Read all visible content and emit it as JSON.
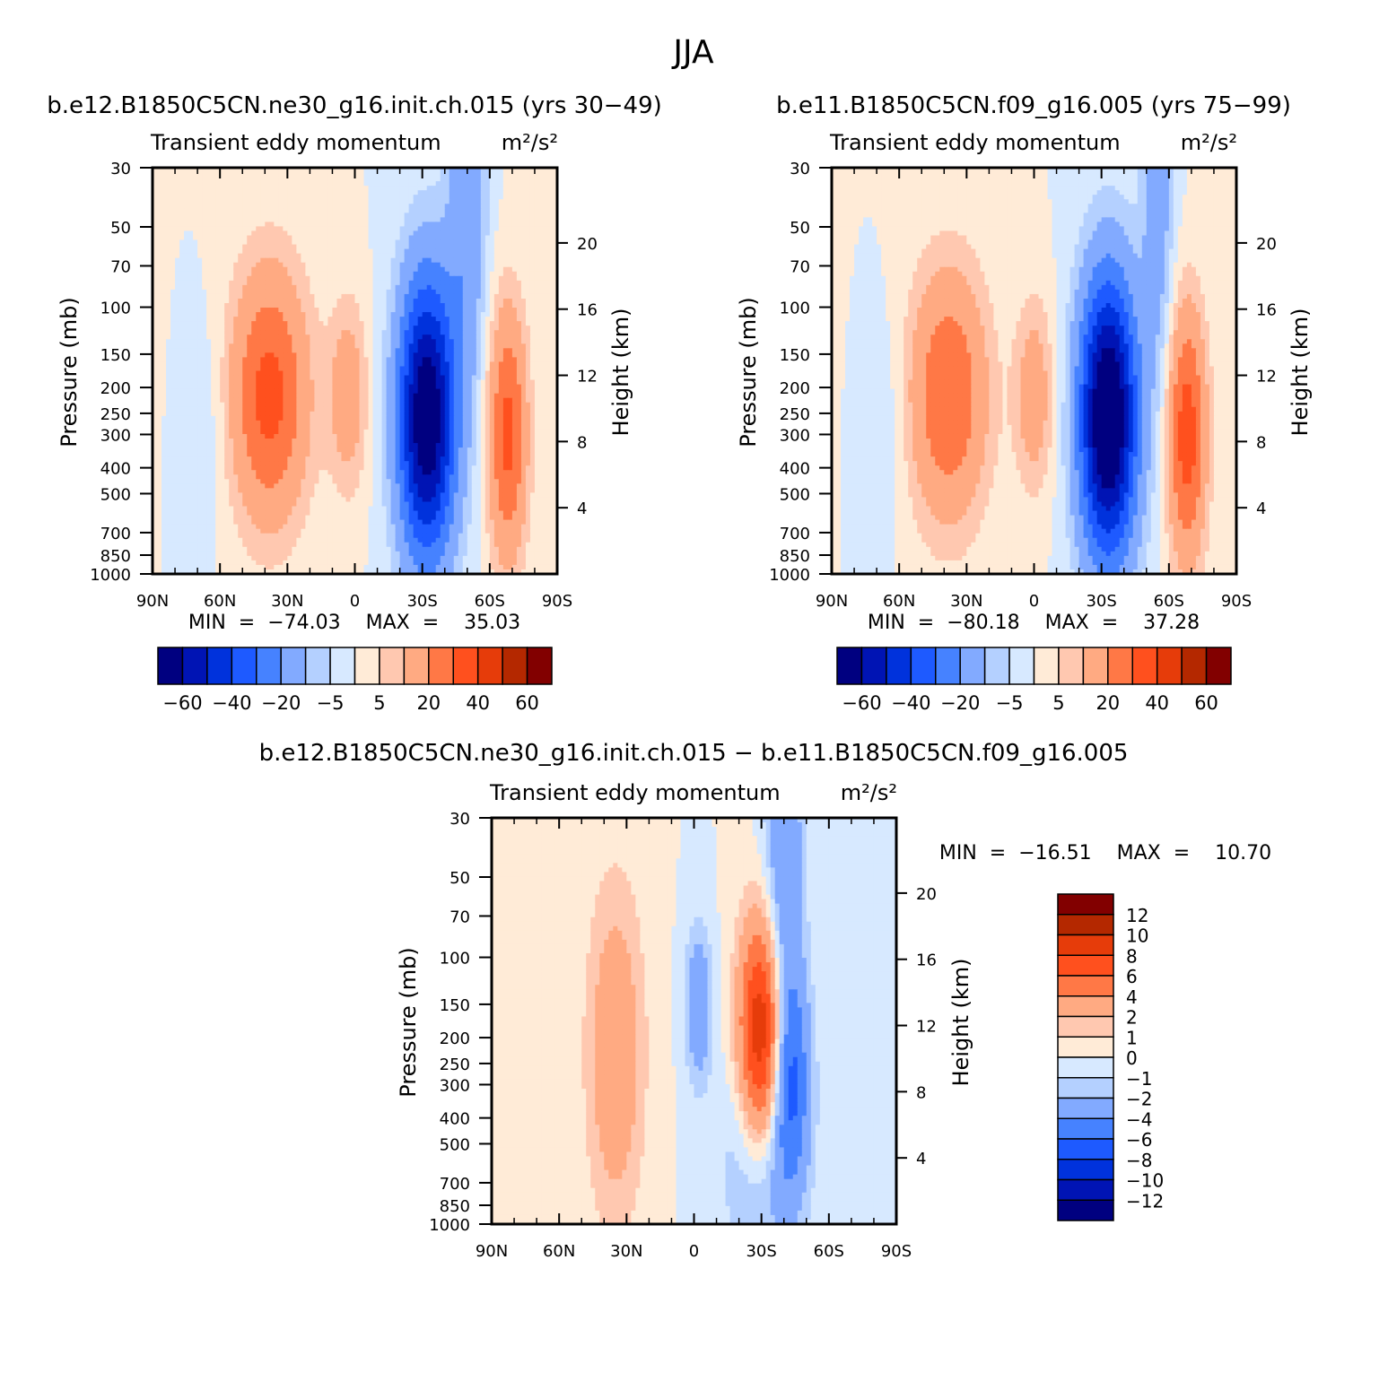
{
  "figure_title": "JJA",
  "colors": {
    "main_scale": [
      "#000080",
      "#0014b4",
      "#0032dc",
      "#1e5aff",
      "#4682ff",
      "#82aaff",
      "#b4d0ff",
      "#d7e9ff",
      "#ffebd7",
      "#ffc8b0",
      "#ffaa82",
      "#ff7846",
      "#ff501e",
      "#e63c0a",
      "#b42800",
      "#820000"
    ],
    "diff_scale": [
      "#000080",
      "#0014b4",
      "#0032dc",
      "#1e5aff",
      "#4682ff",
      "#82aaff",
      "#b4d0ff",
      "#d7e9ff",
      "#ffebd7",
      "#ffc8b0",
      "#ffaa82",
      "#ff7846",
      "#ff501e",
      "#e63c0a",
      "#b42800",
      "#820000"
    ]
  },
  "chart_data": [
    {
      "type": "heatmap",
      "title": "b.e12.B1850C5CN.ne30_g16.init.ch.015 (yrs 30−49)",
      "subtitle": "Transient  eddy  momentum",
      "units": "m²/s²",
      "ylabel": "Pressure  (mb)",
      "ylabel_right": "Height  (km)",
      "xlim": [
        90,
        -90
      ],
      "x_ticklabels": [
        "90N",
        "60N",
        "30N",
        "0",
        "30S",
        "60S",
        "90S"
      ],
      "y_ticklabels": [
        "30",
        "50",
        "70",
        "100",
        "150",
        "200",
        "250",
        "300",
        "400",
        "500",
        "700",
        "850",
        "1000"
      ],
      "y_right_ticklabels": [
        "20",
        "16",
        "12",
        "8",
        "4"
      ],
      "y_scale": "log",
      "ylim": [
        1000,
        30
      ],
      "stats": "MIN  =  −74.03    MAX  =    35.03",
      "min": -74.03,
      "max": 35.03,
      "colorbar_ticklabels": [
        "−60",
        "−40",
        "−20",
        "−5",
        "5",
        "20",
        "40",
        "60"
      ],
      "features": [
        {
          "lat": 38,
          "p": 215,
          "value": 34,
          "lat_width": 12,
          "logp_width": 0.33
        },
        {
          "lat": 3,
          "p": 215,
          "value": 16,
          "lat_width": 6,
          "logp_width": 0.25
        },
        {
          "lat": -32,
          "p": 260,
          "value": -72,
          "lat_width": 9,
          "logp_width": 0.37
        },
        {
          "lat": -68,
          "p": 300,
          "value": 33,
          "lat_width": 6,
          "logp_width": 0.33
        },
        {
          "lat": -50,
          "p": 40,
          "value": -18,
          "lat_width": 6,
          "logp_width": 0.5
        },
        {
          "lat": 65,
          "p": 280,
          "value": -4,
          "lat_width": 6,
          "logp_width": 0.3
        }
      ]
    },
    {
      "type": "heatmap",
      "title": "b.e11.B1850C5CN.f09_g16.005 (yrs 75−99)",
      "subtitle": "Transient  eddy  momentum",
      "units": "m²/s²",
      "ylabel": "Pressure  (mb)",
      "ylabel_right": "Height  (km)",
      "xlim": [
        90,
        -90
      ],
      "x_ticklabels": [
        "90N",
        "60N",
        "30N",
        "0",
        "30S",
        "60S",
        "90S"
      ],
      "y_ticklabels": [
        "30",
        "50",
        "70",
        "100",
        "150",
        "200",
        "250",
        "300",
        "400",
        "500",
        "700",
        "850",
        "1000"
      ],
      "y_right_ticklabels": [
        "20",
        "16",
        "12",
        "8",
        "4"
      ],
      "y_scale": "log",
      "ylim": [
        1000,
        30
      ],
      "stats": "MIN  =  −80.18    MAX  =    37.28",
      "min": -80.18,
      "max": 37.28,
      "colorbar_ticklabels": [
        "−60",
        "−40",
        "−20",
        "−5",
        "5",
        "20",
        "40",
        "60"
      ],
      "features": [
        {
          "lat": 38,
          "p": 215,
          "value": 30,
          "lat_width": 12,
          "logp_width": 0.33
        },
        {
          "lat": 0,
          "p": 215,
          "value": 16,
          "lat_width": 6,
          "logp_width": 0.25
        },
        {
          "lat": -33,
          "p": 260,
          "value": -78,
          "lat_width": 9,
          "logp_width": 0.37
        },
        {
          "lat": -68,
          "p": 300,
          "value": 36,
          "lat_width": 6,
          "logp_width": 0.33
        },
        {
          "lat": -55,
          "p": 40,
          "value": -15,
          "lat_width": 5,
          "logp_width": 0.5
        },
        {
          "lat": 65,
          "p": 280,
          "value": -4,
          "lat_width": 6,
          "logp_width": 0.3
        }
      ]
    },
    {
      "type": "heatmap",
      "title": "b.e12.B1850C5CN.ne30_g16.init.ch.015 − b.e11.B1850C5CN.f09_g16.005",
      "subtitle": "Transient  eddy  momentum",
      "units": "m²/s²",
      "ylabel": "Pressure  (mb)",
      "ylabel_right": "Height  (km)",
      "xlim": [
        90,
        -90
      ],
      "x_ticklabels": [
        "90N",
        "60N",
        "30N",
        "0",
        "30S",
        "60S",
        "90S"
      ],
      "y_ticklabels": [
        "30",
        "50",
        "70",
        "100",
        "150",
        "200",
        "250",
        "300",
        "400",
        "500",
        "700",
        "850",
        "1000"
      ],
      "y_right_ticklabels": [
        "20",
        "16",
        "12",
        "8",
        "4"
      ],
      "y_scale": "log",
      "ylim": [
        1000,
        30
      ],
      "stats": "MIN  =  −16.51    MAX  =    10.70",
      "min": -16.51,
      "max": 10.7,
      "colorbar_ticklabels": [
        "12",
        "10",
        "8",
        "6",
        "4",
        "2",
        "1",
        "0",
        "−1",
        "−2",
        "−4",
        "−6",
        "−8",
        "−10",
        "−12"
      ],
      "features": [
        {
          "lat": 35,
          "p": 230,
          "value": 3.5,
          "lat_width": 9,
          "logp_width": 0.45
        },
        {
          "lat": -30,
          "p": 200,
          "value": 10.7,
          "lat_width": 7,
          "logp_width": 0.3
        },
        {
          "lat": -43,
          "p": 280,
          "value": -6,
          "lat_width": 6,
          "logp_width": 0.3
        },
        {
          "lat": -40,
          "p": 40,
          "value": -4,
          "lat_width": 6,
          "logp_width": 0.5
        },
        {
          "lat": -30,
          "p": 550,
          "value": -3,
          "lat_width": 12,
          "logp_width": 0.3
        },
        {
          "lat": -2,
          "p": 150,
          "value": -4,
          "lat_width": 4,
          "logp_width": 0.2
        }
      ]
    }
  ]
}
